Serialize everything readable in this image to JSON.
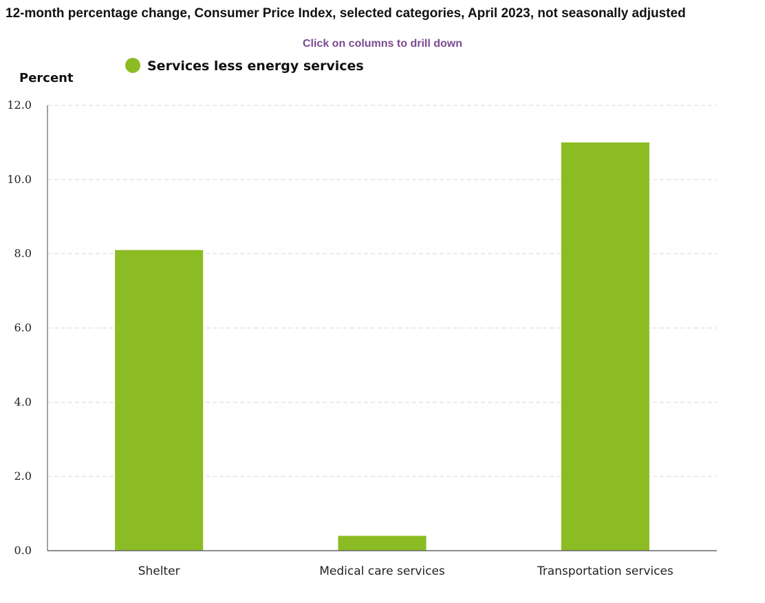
{
  "title": "12-month percentage change, Consumer Price Index, selected categories, April 2023, not seasonally adjusted",
  "subtitle": "Click on columns to drill down",
  "colors": {
    "bar": "#8cbc23",
    "axis": "#666666",
    "grid": "#d9d9d9",
    "subtitle": "#7b4a91"
  },
  "chart_data": {
    "type": "bar",
    "categories": [
      "Shelter",
      "Medical care services",
      "Transportation services"
    ],
    "series": [
      {
        "name": "Services less energy services",
        "values": [
          8.1,
          0.4,
          11.0
        ]
      }
    ],
    "ylabel": "Percent",
    "xlabel": "",
    "ylim": [
      0,
      12
    ],
    "yticks": [
      "0.0",
      "2.0",
      "4.0",
      "6.0",
      "8.0",
      "10.0",
      "12.0"
    ],
    "grid": true,
    "legend": "top-left"
  }
}
